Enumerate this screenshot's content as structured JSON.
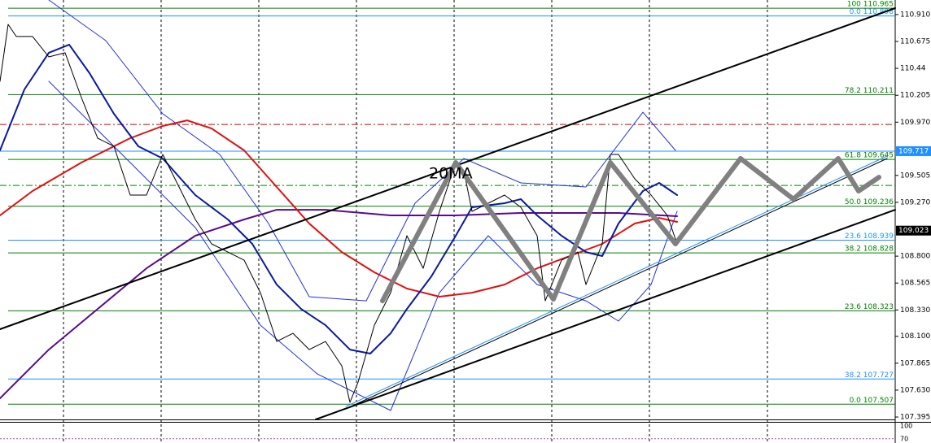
{
  "chart_data": {
    "type": "line",
    "xlim": [
      0,
      110
    ],
    "ylim": [
      107.374,
      111.037
    ],
    "yticks": [
      {
        "value": 110.91,
        "label": "110.910"
      },
      110.675,
      110.44,
      110.205,
      {
        "value": 109.97,
        "label": "109.970"
      },
      109.505,
      {
        "value": 109.27,
        "label": "109.270"
      },
      {
        "value": 108.8,
        "label": "108.800"
      },
      108.565,
      {
        "value": 108.33,
        "label": "108.330"
      },
      {
        "value": 108.1,
        "label": "108.100"
      },
      107.865,
      {
        "value": 107.63,
        "label": "107.630"
      },
      107.395
    ],
    "xgrid": [
      7.8,
      19.8,
      31.8,
      43.8,
      55.8,
      67.8,
      79.8,
      94.3
    ],
    "price_boxes": [
      {
        "value": 109.717,
        "color": "#1e90ff"
      },
      {
        "value": 109.023,
        "color": "#000000"
      }
    ],
    "hlines": [
      {
        "value": 109.95,
        "color": "#d00000",
        "dash": "8 3 2 3"
      },
      {
        "value": 109.418,
        "color": "#008000",
        "dash": "8 3 2 3"
      },
      {
        "value": 109.717,
        "color": "#1e90ff",
        "dash": ""
      }
    ],
    "fib_levels": [
      {
        "label": "100 110.965",
        "value": 110.965,
        "color": "#008000"
      },
      {
        "label": "0.0 110.898",
        "value": 110.898,
        "color": "#1e90ff"
      },
      {
        "label": "78.2 110.211",
        "value": 110.211,
        "color": "#008000"
      },
      {
        "label": "61.8 109.645",
        "value": 109.645,
        "color": "#008000"
      },
      {
        "label": "50.0 109.236",
        "value": 109.236,
        "color": "#008000"
      },
      {
        "label": "23.6 108.939",
        "value": 108.939,
        "color": "#1e90ff"
      },
      {
        "label": "38.2 108.828",
        "value": 108.828,
        "color": "#008000"
      },
      {
        "label": "23.6 108.323",
        "value": 108.323,
        "color": "#008000"
      },
      {
        "label": "38.2 107.727",
        "value": 107.727,
        "color": "#1e90ff"
      },
      {
        "label": "0.0 107.507",
        "value": 107.507,
        "color": "#008000"
      }
    ],
    "lines": [
      {
        "color": "#2030e0",
        "width": 1,
        "x": [
          6,
          13,
          20,
          27,
          33,
          38,
          45,
          51,
          57,
          64,
          72,
          79,
          83
        ],
        "values": [
          111.037,
          110.682,
          110.043,
          109.688,
          109.085,
          108.446,
          108.41,
          109.262,
          109.653,
          109.44,
          109.404,
          110.057,
          109.724
        ]
      },
      {
        "color": "#2030e0",
        "width": 1,
        "x": [
          6,
          16,
          24,
          32,
          39,
          48,
          54,
          60,
          66,
          72,
          76,
          80,
          83.2
        ],
        "values": [
          110.327,
          109.617,
          109.049,
          108.197,
          107.771,
          107.452,
          108.481,
          108.978,
          108.552,
          108.41,
          108.233,
          108.552,
          109.191
        ]
      },
      {
        "color": "#5a0a8c",
        "width": 2,
        "x": [
          0,
          6,
          12,
          18,
          24,
          30,
          34,
          40,
          48,
          56,
          64,
          70,
          76,
          83.2
        ],
        "values": [
          107.558,
          107.984,
          108.339,
          108.694,
          108.978,
          109.12,
          109.205,
          109.205,
          109.156,
          109.156,
          109.177,
          109.177,
          109.177,
          109.149
        ]
      },
      {
        "color": "#e01010",
        "width": 2,
        "x": [
          0,
          4,
          10,
          16,
          20,
          23,
          26,
          30,
          34,
          38,
          42,
          46,
          50,
          54,
          58,
          62,
          66,
          70,
          74,
          78,
          81,
          83.2
        ],
        "values": [
          109.156,
          109.369,
          109.617,
          109.83,
          109.937,
          109.986,
          109.915,
          109.724,
          109.404,
          109.085,
          108.836,
          108.659,
          108.517,
          108.446,
          108.481,
          108.552,
          108.694,
          108.801,
          108.907,
          109.085,
          109.134,
          109.099
        ]
      },
      {
        "color": "#0a1aa0",
        "width": 2,
        "x": [
          0,
          3,
          6,
          8.5,
          11,
          14,
          17,
          20,
          24,
          28,
          31,
          34,
          37,
          40,
          43,
          45.5,
          48,
          50,
          53,
          56,
          58,
          62,
          64,
          66,
          69,
          72,
          74,
          76,
          79,
          81,
          83.2
        ],
        "values": [
          109.724,
          110.256,
          110.576,
          110.647,
          110.398,
          110.043,
          109.759,
          109.653,
          109.333,
          109.12,
          108.907,
          108.552,
          108.339,
          108.197,
          107.984,
          107.949,
          108.126,
          108.339,
          108.623,
          108.978,
          109.227,
          109.262,
          109.298,
          109.156,
          108.978,
          108.836,
          108.801,
          109.085,
          109.369,
          109.44,
          109.333
        ]
      },
      {
        "color": "#000000",
        "width": 1,
        "x": [
          0,
          1,
          2,
          4,
          6,
          8,
          10,
          12,
          14,
          16,
          18,
          20,
          22,
          24,
          26,
          28,
          30,
          32,
          34,
          36,
          38,
          40,
          42,
          43,
          44,
          46,
          48,
          50,
          52,
          54,
          56,
          57,
          58,
          60,
          62,
          64,
          66,
          67,
          69,
          71,
          72,
          74,
          75,
          76,
          78,
          80,
          82,
          83.2
        ],
        "values": [
          110.327,
          110.824,
          110.718,
          110.718,
          110.54,
          110.576,
          110.185,
          109.83,
          109.759,
          109.333,
          109.333,
          109.688,
          109.404,
          109.12,
          108.907,
          108.836,
          108.765,
          108.481,
          108.055,
          108.126,
          107.984,
          108.055,
          107.842,
          107.523,
          107.7,
          108.197,
          108.481,
          108.978,
          108.694,
          109.191,
          109.617,
          109.546,
          109.191,
          109.262,
          109.333,
          109.227,
          108.978,
          108.41,
          108.765,
          108.836,
          108.552,
          108.907,
          109.688,
          109.688,
          109.475,
          109.333,
          109.156,
          108.907
        ]
      },
      {
        "color": "#000000",
        "width": 2,
        "x": [
          0,
          110
        ],
        "values": [
          108.162,
          110.966
        ]
      },
      {
        "color": "#000000",
        "width": 2,
        "x": [
          38.8,
          110
        ],
        "values": [
          107.374,
          109.205
        ]
      },
      {
        "color": "#1e90ff",
        "width": 1,
        "x": [
          42.5,
          109
        ],
        "values": [
          107.487,
          109.674
        ]
      },
      {
        "color": "#000000",
        "width": 1,
        "x": [
          42.5,
          109
        ],
        "values": [
          107.466,
          109.653
        ]
      },
      {
        "color": "#808080",
        "width": 6,
        "x": [
          47,
          56,
          68,
          75,
          83,
          91,
          97.5,
          103,
          105.5,
          108
        ],
        "values": [
          108.41,
          109.617,
          108.424,
          109.617,
          108.907,
          109.653,
          109.298,
          109.653,
          109.369,
          109.489
        ]
      }
    ],
    "annotation": "20MA",
    "indicator": {
      "ylim": [
        60,
        110
      ],
      "yticks": [
        100,
        70
      ],
      "level": 70
    }
  }
}
